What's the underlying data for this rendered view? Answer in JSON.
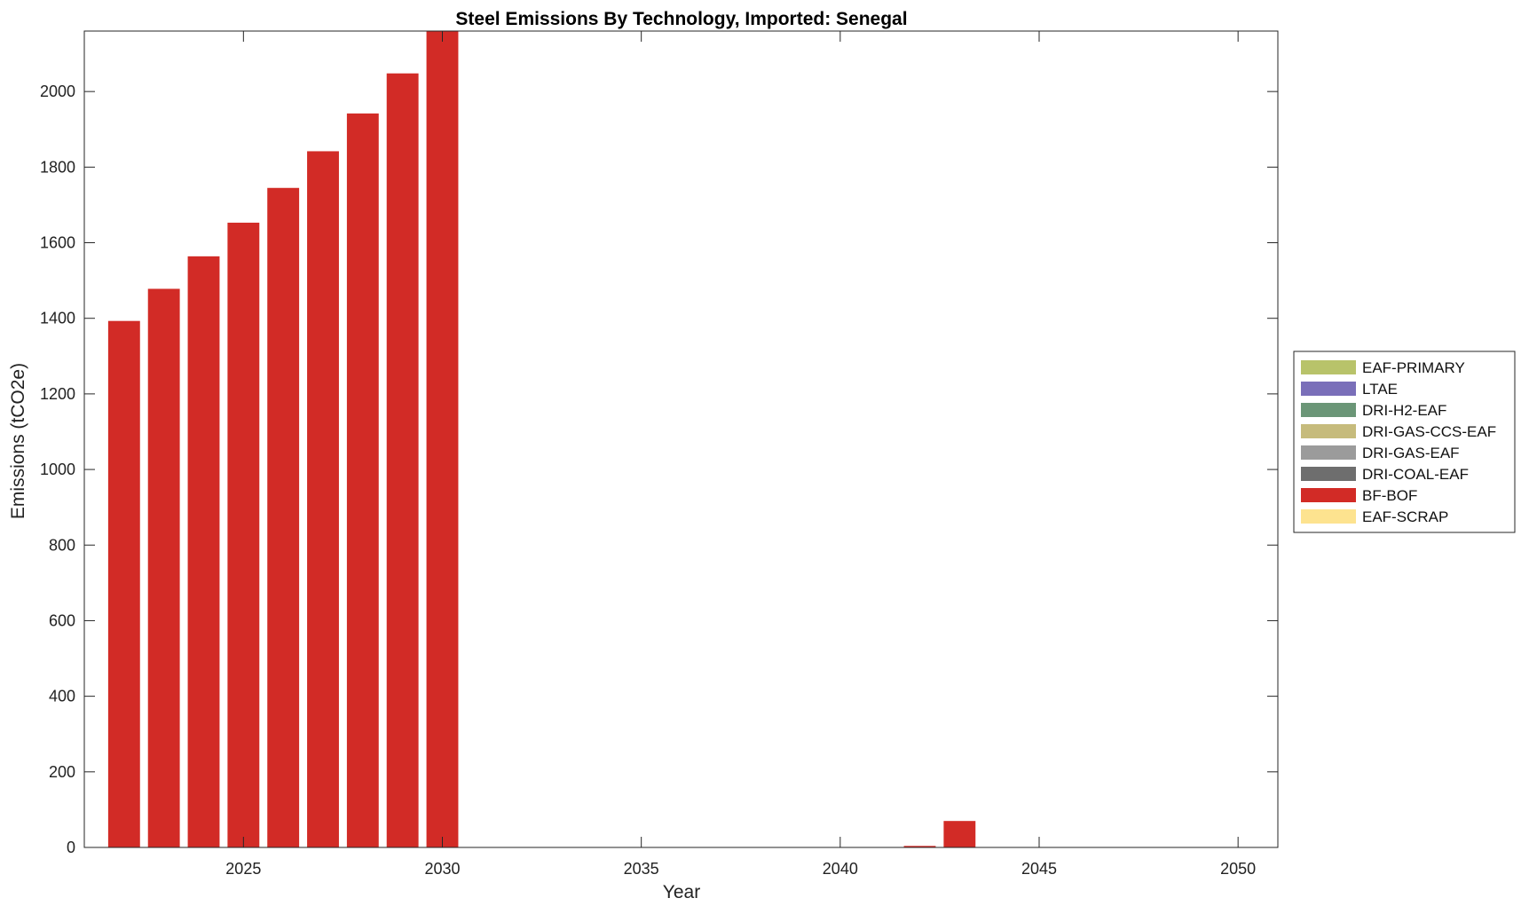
{
  "chart_data": {
    "type": "bar",
    "stacked": true,
    "title": "Steel Emissions By Technology, Imported: Senegal",
    "xlabel": "Year",
    "ylabel": "Emissions (tCO2e)",
    "xlim": [
      2021,
      2051
    ],
    "ylim": [
      0,
      2160
    ],
    "xticks": [
      "2025",
      "2030",
      "2035",
      "2040",
      "2045",
      "2050"
    ],
    "yticks": [
      "0",
      "200",
      "400",
      "600",
      "800",
      "1000",
      "1200",
      "1400",
      "1600",
      "1800",
      "2000"
    ],
    "grid": false,
    "legend_position": "outside-right",
    "categories": [
      2022,
      2023,
      2024,
      2025,
      2026,
      2027,
      2028,
      2029,
      2030,
      2031,
      2032,
      2033,
      2034,
      2035,
      2036,
      2037,
      2038,
      2039,
      2040,
      2041,
      2042,
      2043,
      2044,
      2045,
      2046,
      2047,
      2048,
      2049,
      2050
    ],
    "series": [
      {
        "name": "EAF-PRIMARY",
        "color": "#b8c36a",
        "values": [
          0,
          0,
          0,
          0,
          0,
          0,
          0,
          0,
          0,
          0,
          0,
          0,
          0,
          0,
          0,
          0,
          0,
          0,
          0,
          0,
          0,
          0,
          0,
          0,
          0,
          0,
          0,
          0,
          0
        ]
      },
      {
        "name": "LTAE",
        "color": "#7a6fb9",
        "values": [
          0,
          0,
          0,
          0,
          0,
          0,
          0,
          0,
          0,
          0,
          0,
          0,
          0,
          0,
          0,
          0,
          0,
          0,
          0,
          0,
          0,
          0,
          0,
          0,
          0,
          0,
          0,
          0,
          0
        ]
      },
      {
        "name": "DRI-H2-EAF",
        "color": "#6b9677",
        "values": [
          0,
          0,
          0,
          0,
          0,
          0,
          0,
          0,
          0,
          0,
          0,
          0,
          0,
          0,
          0,
          0,
          0,
          0,
          0,
          0,
          0,
          0,
          0,
          0,
          0,
          0,
          0,
          0,
          0
        ]
      },
      {
        "name": "DRI-GAS-CCS-EAF",
        "color": "#c6bb7c",
        "values": [
          0,
          0,
          0,
          0,
          0,
          0,
          0,
          0,
          0,
          0,
          0,
          0,
          0,
          0,
          0,
          0,
          0,
          0,
          0,
          0,
          0,
          0,
          0,
          0,
          0,
          0,
          0,
          0,
          0
        ]
      },
      {
        "name": "DRI-GAS-EAF",
        "color": "#9b9b9b",
        "values": [
          0,
          0,
          0,
          0,
          0,
          0,
          0,
          0,
          0,
          0,
          0,
          0,
          0,
          0,
          0,
          0,
          0,
          0,
          0,
          0,
          0,
          0,
          0,
          0,
          0,
          0,
          0,
          0,
          0
        ]
      },
      {
        "name": "DRI-COAL-EAF",
        "color": "#6e6e6e",
        "values": [
          0,
          0,
          0,
          0,
          0,
          0,
          0,
          0,
          0,
          0,
          0,
          0,
          0,
          0,
          0,
          0,
          0,
          0,
          0,
          0,
          0,
          0,
          0,
          0,
          0,
          0,
          0,
          0,
          0
        ]
      },
      {
        "name": "BF-BOF",
        "color": "#d22b26",
        "values": [
          1393,
          1478,
          1564,
          1653,
          1745,
          1842,
          1942,
          2048,
          2160,
          0,
          0,
          0,
          0,
          0,
          0,
          0,
          0,
          0,
          0,
          0,
          4,
          70,
          0,
          0,
          0,
          0,
          0,
          0,
          0
        ]
      },
      {
        "name": "EAF-SCRAP",
        "color": "#fde38f",
        "values": [
          0,
          0,
          0,
          0,
          0,
          0,
          0,
          0,
          0,
          0,
          0,
          0,
          0,
          0,
          0,
          0,
          0,
          0,
          0,
          0,
          0,
          0,
          0,
          0,
          0,
          0,
          0,
          0,
          0
        ]
      }
    ]
  }
}
